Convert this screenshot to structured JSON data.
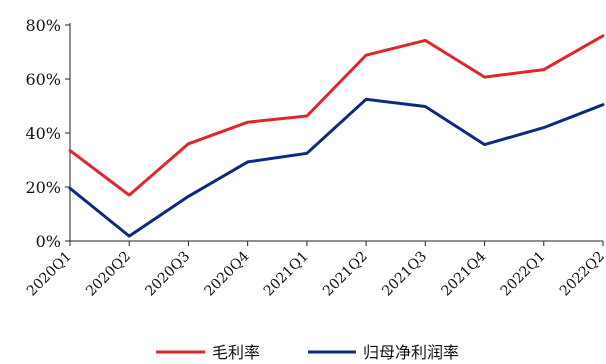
{
  "chart_data": {
    "type": "line",
    "categories": [
      "2020Q1",
      "2020Q2",
      "2020Q3",
      "2020Q4",
      "2021Q1",
      "2021Q2",
      "2021Q3",
      "2021Q4",
      "2022Q1",
      "2022Q2"
    ],
    "series": [
      {
        "name": "毛利率",
        "color": "#e0262b",
        "values": [
          33.5,
          17.0,
          36.0,
          44.0,
          46.3,
          68.8,
          74.3,
          60.7,
          63.5,
          76.0
        ]
      },
      {
        "name": "归母净利润率",
        "color": "#0d2a7e",
        "values": [
          19.5,
          1.8,
          16.5,
          29.3,
          32.5,
          52.5,
          49.8,
          35.7,
          42.0,
          50.5
        ]
      }
    ],
    "y_ticks": [
      0,
      20,
      40,
      60,
      80
    ],
    "y_tick_labels": [
      "0%",
      "20%",
      "40%",
      "60%",
      "80%"
    ],
    "ylim": [
      0,
      80
    ],
    "title": "",
    "xlabel": "",
    "ylabel": "",
    "grid": false,
    "legend_position": "bottom-center"
  }
}
